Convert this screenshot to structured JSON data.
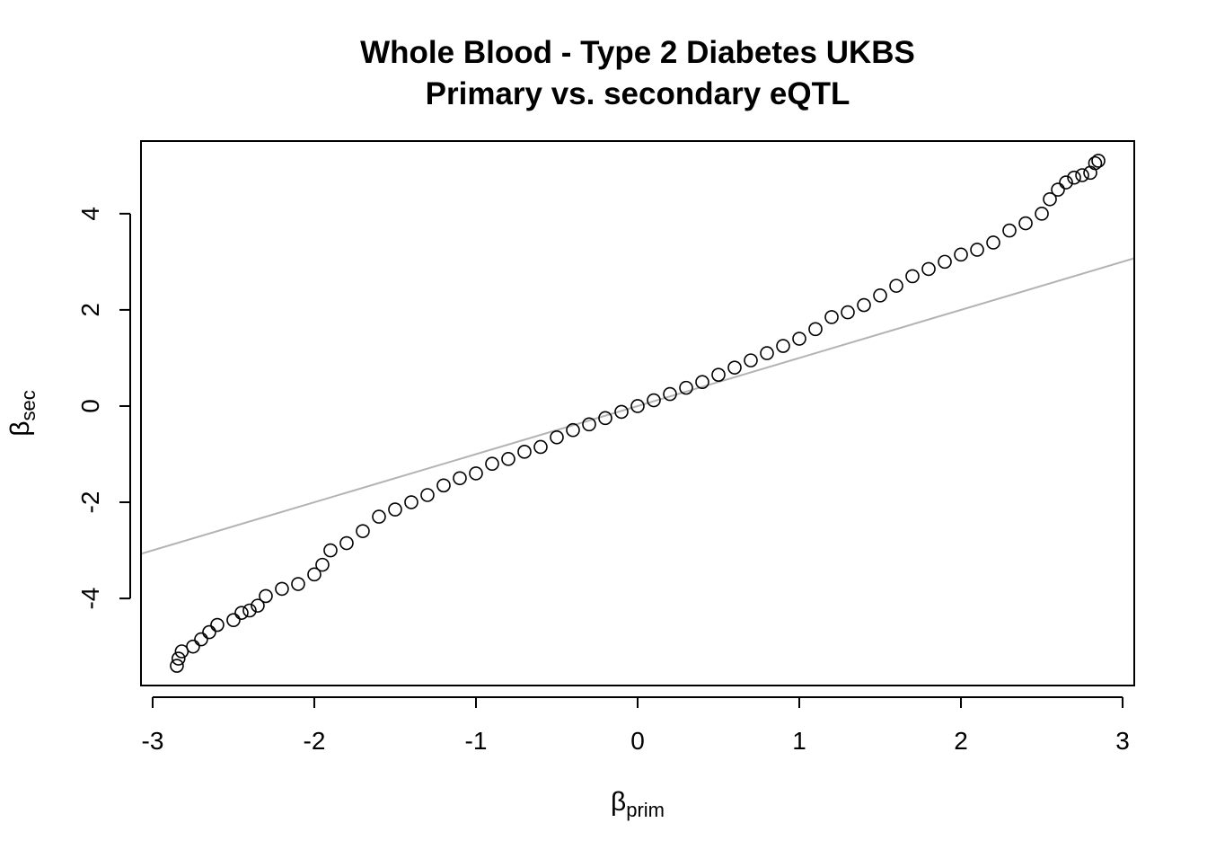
{
  "chart_data": {
    "type": "scatter",
    "title": "Whole Blood - Type 2 Diabetes UKBS",
    "subtitle": "Primary vs. secondary eQTL",
    "xlabel": {
      "base": "β",
      "sub": "prim"
    },
    "ylabel": {
      "base": "β",
      "sub": "sec"
    },
    "x": [
      -2.85,
      -2.84,
      -2.82,
      -2.75,
      -2.7,
      -2.65,
      -2.6,
      -2.5,
      -2.45,
      -2.4,
      -2.35,
      -2.3,
      -2.2,
      -2.1,
      -2.0,
      -1.95,
      -1.9,
      -1.8,
      -1.7,
      -1.6,
      -1.5,
      -1.4,
      -1.3,
      -1.2,
      -1.1,
      -1.0,
      -0.9,
      -0.8,
      -0.7,
      -0.6,
      -0.5,
      -0.4,
      -0.3,
      -0.2,
      -0.1,
      0,
      0.1,
      0.2,
      0.3,
      0.4,
      0.5,
      0.6,
      0.7,
      0.8,
      0.9,
      1.0,
      1.1,
      1.2,
      1.3,
      1.4,
      1.5,
      1.6,
      1.7,
      1.8,
      1.9,
      2.0,
      2.1,
      2.2,
      2.3,
      2.4,
      2.5,
      2.55,
      2.6,
      2.65,
      2.7,
      2.75,
      2.8,
      2.83,
      2.85
    ],
    "values": [
      -5.4,
      -5.25,
      -5.1,
      -5.0,
      -4.85,
      -4.7,
      -4.55,
      -4.45,
      -4.3,
      -4.25,
      -4.15,
      -3.95,
      -3.8,
      -3.7,
      -3.5,
      -3.3,
      -3.0,
      -2.85,
      -2.6,
      -2.3,
      -2.15,
      -2.0,
      -1.85,
      -1.65,
      -1.5,
      -1.4,
      -1.2,
      -1.1,
      -0.95,
      -0.85,
      -0.65,
      -0.5,
      -0.38,
      -0.25,
      -0.12,
      0,
      0.12,
      0.25,
      0.38,
      0.5,
      0.65,
      0.8,
      0.95,
      1.1,
      1.25,
      1.4,
      1.6,
      1.85,
      1.95,
      2.1,
      2.3,
      2.5,
      2.7,
      2.85,
      3.0,
      3.15,
      3.25,
      3.4,
      3.65,
      3.8,
      4.0,
      4.3,
      4.5,
      4.65,
      4.75,
      4.8,
      4.85,
      5.05,
      5.1
    ],
    "color": "#000000",
    "reference_line": {
      "slope": 1,
      "intercept": 0,
      "color": "#b3b3b3"
    },
    "xlim": [
      -3.072,
      3.072
    ],
    "ylim": [
      -5.81,
      5.51
    ],
    "xticks": [
      -3,
      -2,
      -1,
      0,
      1,
      2,
      3
    ],
    "yticks": [
      -4,
      -2,
      0,
      2,
      4
    ]
  }
}
